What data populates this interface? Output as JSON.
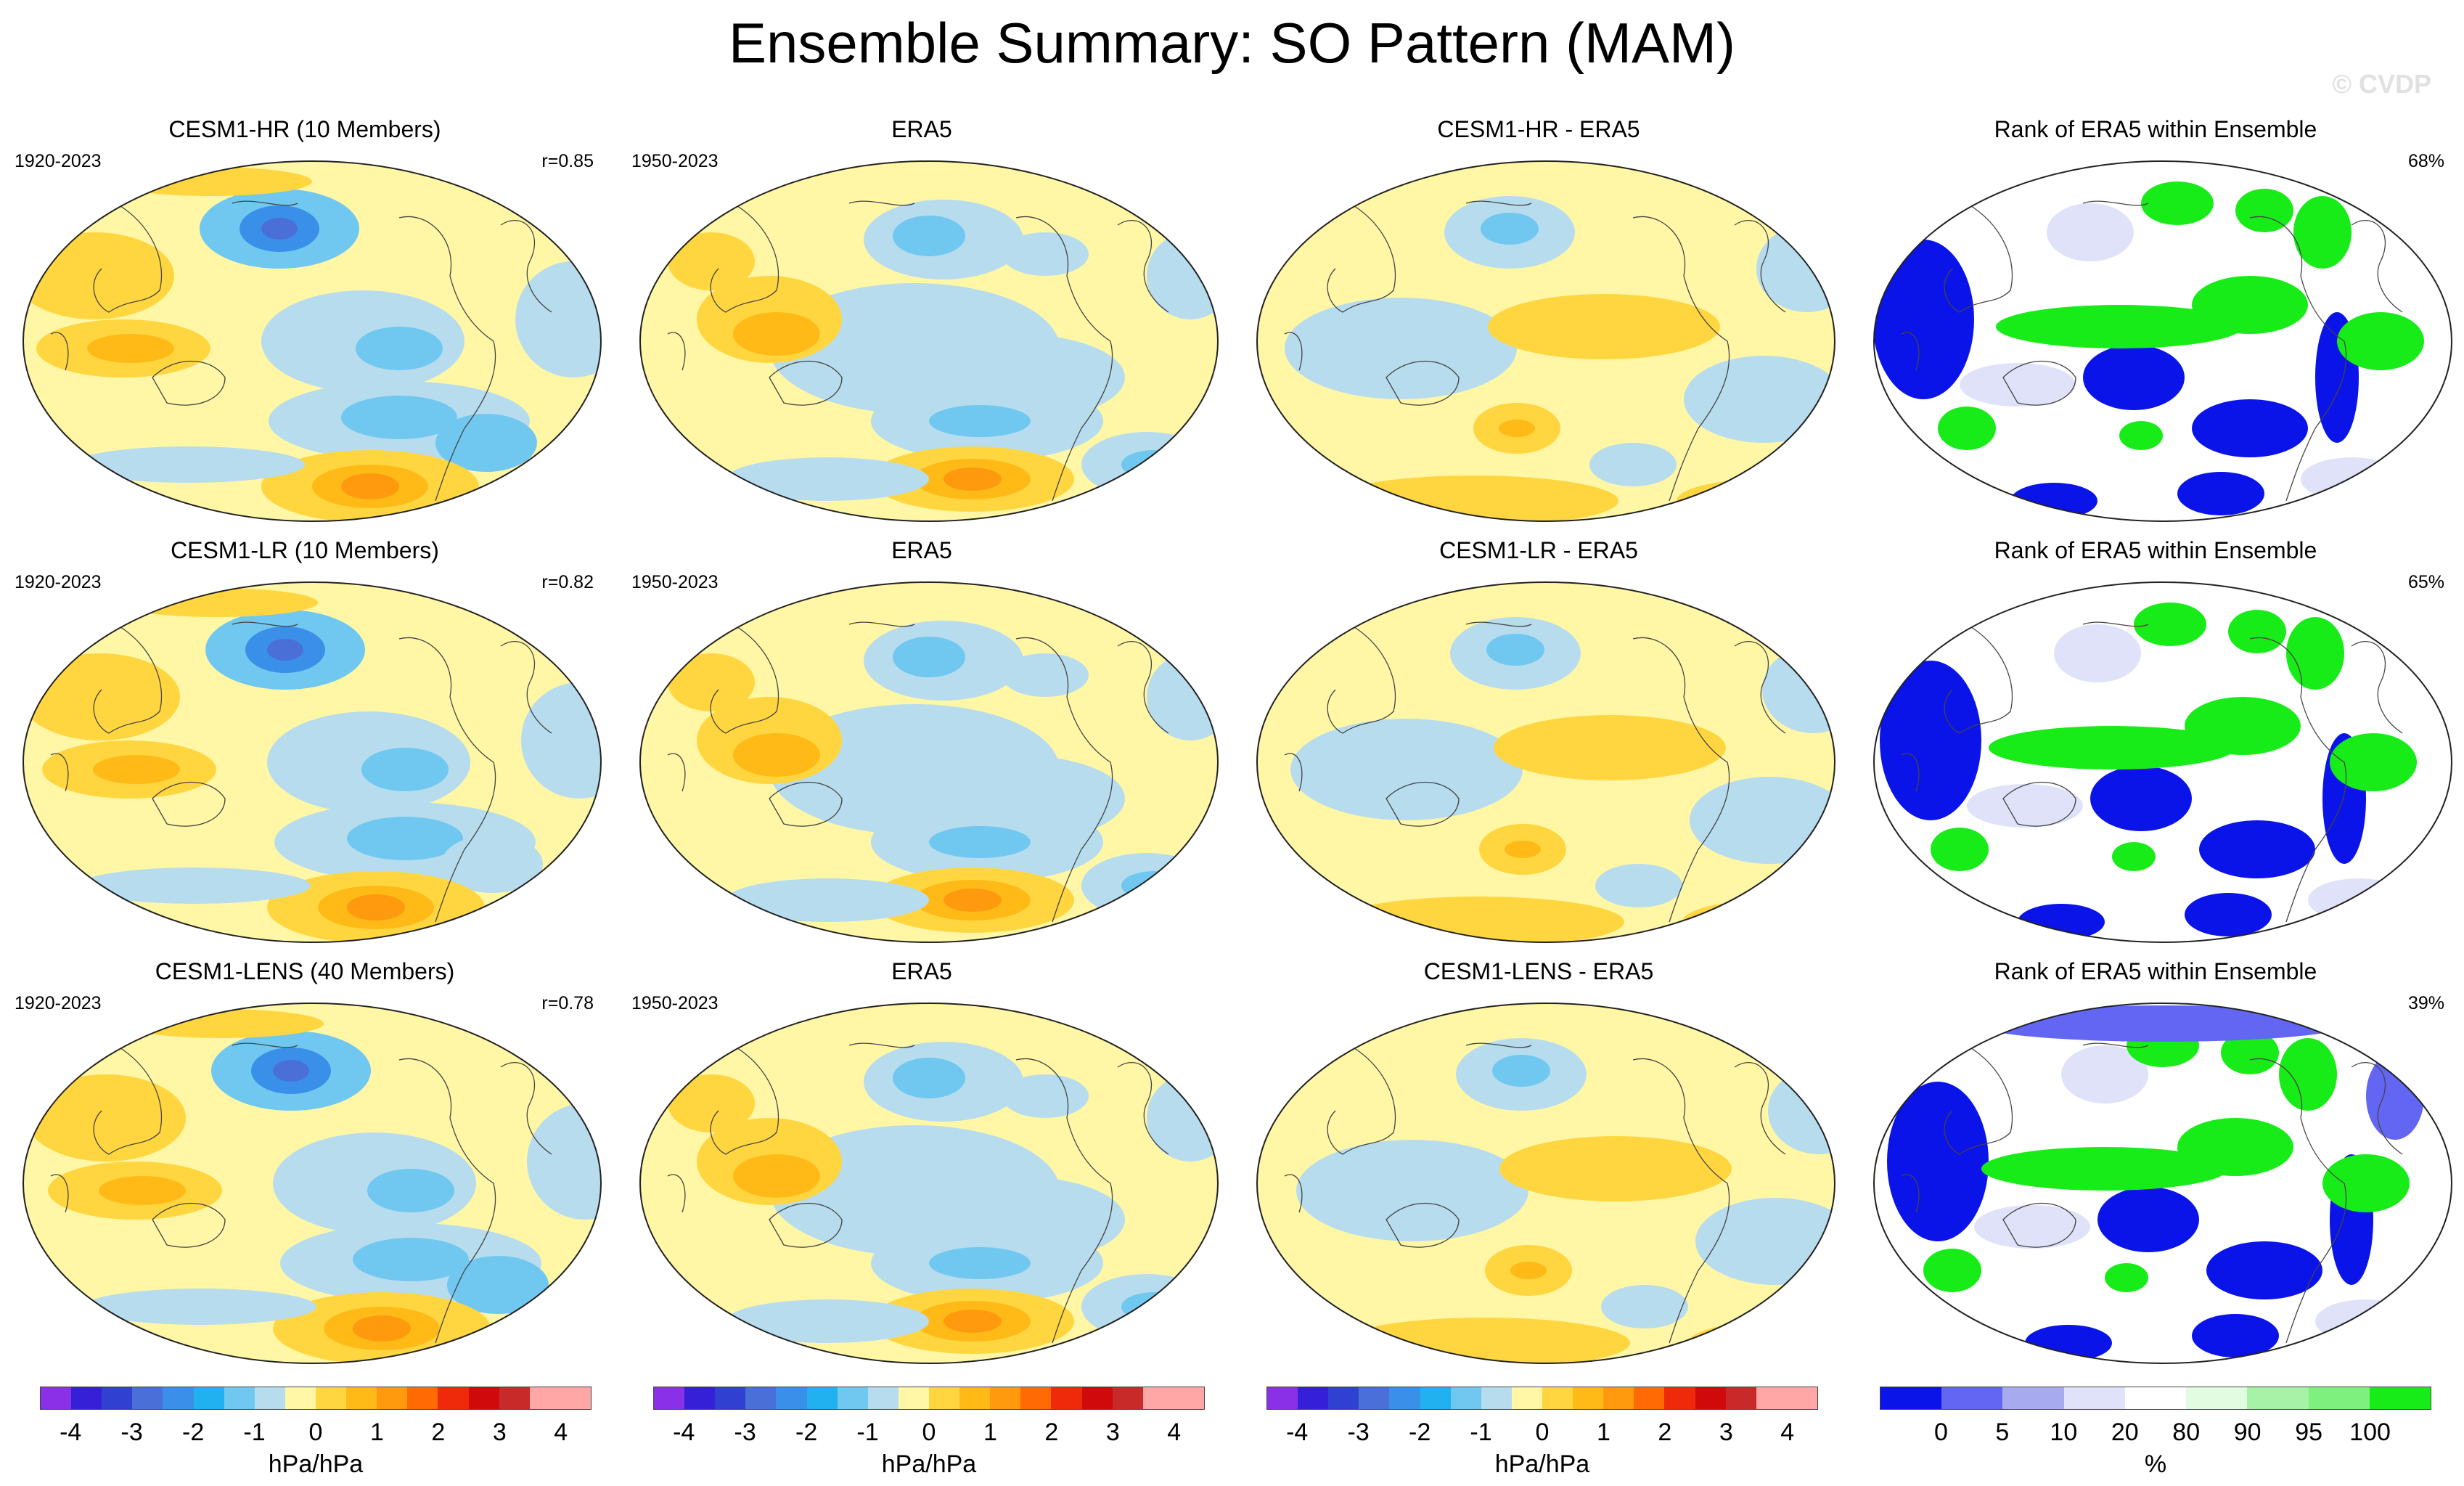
{
  "title": "Ensemble Summary: SO Pattern (MAM)",
  "watermark": "© CVDP",
  "colors": {
    "diverging": [
      "#8a30e6",
      "#3520d8",
      "#3040d0",
      "#4a70d8",
      "#3a90e8",
      "#21b0f0",
      "#70c8f0",
      "#b7dcee",
      "#fff7a6",
      "#ffd640",
      "#ffba18",
      "#ff9a0e",
      "#ff6a05",
      "#ee2a0a",
      "#d00a0a",
      "#c82a2a",
      "#ffa6a6"
    ],
    "rank": [
      "#0a14e8",
      "#6266f2",
      "#a8aaf0",
      "#e0e2fa",
      "#ffffff",
      "#e2fce2",
      "#a6f2a6",
      "#7ef07e",
      "#18ec18"
    ]
  },
  "rows": [
    {
      "model": {
        "title": "CESM1-HR (10 Members)",
        "period": "1920-2023",
        "corr": "r=0.85"
      },
      "obs": {
        "title": "ERA5",
        "period": "1950-2023"
      },
      "diff": {
        "title": "CESM1-HR - ERA5"
      },
      "rank": {
        "title": "Rank of ERA5 within Ensemble",
        "pct": "68%"
      }
    },
    {
      "model": {
        "title": "CESM1-LR (10 Members)",
        "period": "1920-2023",
        "corr": "r=0.82"
      },
      "obs": {
        "title": "ERA5",
        "period": "1950-2023"
      },
      "diff": {
        "title": "CESM1-LR - ERA5"
      },
      "rank": {
        "title": "Rank of ERA5 within Ensemble",
        "pct": "65%"
      }
    },
    {
      "model": {
        "title": "CESM1-LENS (40 Members)",
        "period": "1920-2023",
        "corr": "r=0.78"
      },
      "obs": {
        "title": "ERA5",
        "period": "1950-2023"
      },
      "diff": {
        "title": "CESM1-LENS - ERA5"
      },
      "rank": {
        "title": "Rank of ERA5 within Ensemble",
        "pct": "39%"
      }
    }
  ],
  "colorbars": [
    {
      "ticks": [
        "-4",
        "-3",
        "-2",
        "-1",
        "0",
        "1",
        "2",
        "3",
        "4"
      ],
      "unit": "hPa/hPa"
    },
    {
      "ticks": [
        "-4",
        "-3",
        "-2",
        "-1",
        "0",
        "1",
        "2",
        "3",
        "4"
      ],
      "unit": "hPa/hPa"
    },
    {
      "ticks": [
        "-4",
        "-3",
        "-2",
        "-1",
        "0",
        "1",
        "2",
        "3",
        "4"
      ],
      "unit": "hPa/hPa"
    },
    {
      "ticks": [
        "0",
        "5",
        "10",
        "20",
        "80",
        "90",
        "95",
        "100"
      ],
      "unit": "%"
    }
  ],
  "chart_data": {
    "type": "heatmap",
    "title": "Ensemble Summary: SO Pattern (MAM)",
    "projection": "Robinson (Pacific-centered)",
    "variable": "SO pattern regression (sea level pressure)",
    "units": "hPa/hPa",
    "contour_levels": [
      -4,
      -3.5,
      -3,
      -2.5,
      -2,
      -1.5,
      -1,
      -0.5,
      0,
      0.5,
      1,
      1.5,
      2,
      2.5,
      3,
      3.5,
      4
    ],
    "rank_levels": [
      0,
      5,
      10,
      20,
      80,
      90,
      95,
      100
    ],
    "rank_units": "%",
    "rows": [
      {
        "model": "CESM1-HR (10 Members)",
        "model_period": "1920-2023",
        "obs": "ERA5",
        "obs_period": "1950-2023",
        "pattern_correlation": 0.85,
        "rank_pct": 68
      },
      {
        "model": "CESM1-LR (10 Members)",
        "model_period": "1920-2023",
        "obs": "ERA5",
        "obs_period": "1950-2023",
        "pattern_correlation": 0.82,
        "rank_pct": 65
      },
      {
        "model": "CESM1-LENS (40 Members)",
        "model_period": "1920-2023",
        "obs": "ERA5",
        "obs_period": "1950-2023",
        "pattern_correlation": 0.78,
        "rank_pct": 39
      }
    ]
  }
}
